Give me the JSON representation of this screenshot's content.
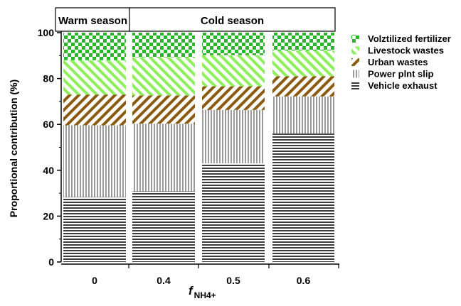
{
  "chart_data": {
    "type": "bar",
    "stacked": true,
    "ylabel": "Proportional contribution (%)",
    "xlabel_main": "f",
    "xlabel_sub": "NH4+",
    "ylim": [
      0,
      100
    ],
    "yticks": [
      "0",
      "20",
      "40",
      "60",
      "80",
      "100"
    ],
    "categories": [
      "0",
      "0.4",
      "0.5",
      "0.6"
    ],
    "season_headers": [
      {
        "label": "Warm season",
        "categories": [
          0
        ]
      },
      {
        "label": "Cold season",
        "categories": [
          1,
          2,
          3
        ]
      }
    ],
    "series": [
      {
        "name": "Vehicle exhaust",
        "color": "#3c3c3c",
        "pattern": "horizontal-lines",
        "values": [
          28.3,
          30.8,
          43.1,
          56.0
        ]
      },
      {
        "name": "Power plnt slip",
        "color": "#9a9a9a",
        "pattern": "vertical-lines",
        "values": [
          31.3,
          29.5,
          23.2,
          16.2
        ]
      },
      {
        "name": "Urban wastes",
        "color": "#8b5a10",
        "pattern": "diagonal-down",
        "values": [
          13.4,
          12.3,
          10.3,
          8.8
        ]
      },
      {
        "name": "Livestock wastes",
        "color": "#8cf05a",
        "pattern": "diagonal-up",
        "values": [
          15.0,
          16.7,
          13.6,
          11.2
        ]
      },
      {
        "name": "Volztilized fertilizer",
        "color": "#2bb52b",
        "pattern": "checker",
        "values": [
          12.0,
          10.7,
          9.8,
          7.8
        ]
      }
    ],
    "legend_position": "top-right",
    "grid": false
  }
}
